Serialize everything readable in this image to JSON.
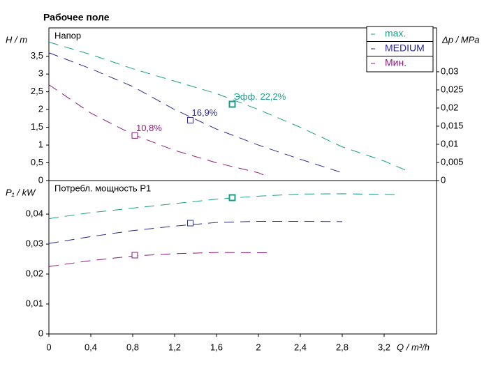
{
  "title": "Рабочее поле",
  "chart_data": [
    {
      "type": "line",
      "panel_title": "Напор",
      "ylabel": "H / m",
      "y2label": "Δp / MPa",
      "ylim": [
        0,
        4.3
      ],
      "y2lim": [
        0,
        0.0421
      ],
      "yticks": [
        0,
        {
          "value": 0.5,
          "label": "0,5"
        },
        1,
        {
          "value": 1.5,
          "label": "1,5"
        },
        2,
        {
          "value": 2.5,
          "label": "2,5"
        },
        3,
        {
          "value": 3.5,
          "label": "3,5"
        }
      ],
      "y2ticks": [
        0,
        {
          "value": 0.005,
          "label": "0,005"
        },
        {
          "value": 0.01,
          "label": "0,01"
        },
        {
          "value": 0.015,
          "label": "0,015"
        },
        {
          "value": 0.02,
          "label": "0,02"
        },
        {
          "value": 0.025,
          "label": "0,025"
        },
        {
          "value": 0.03,
          "label": "0,03"
        }
      ],
      "legend": "top-right",
      "series": [
        {
          "name": "max.",
          "color": "#1a9e8a",
          "x": [
            0,
            0.4,
            0.8,
            1.2,
            1.6,
            2.0,
            2.4,
            2.8,
            3.2,
            3.4
          ],
          "values": [
            3.9,
            3.55,
            3.15,
            2.8,
            2.45,
            2.0,
            1.5,
            0.95,
            0.55,
            0.3
          ],
          "marker": {
            "x": 1.75,
            "value": 2.15,
            "label": "Эфф.  22,2%"
          }
        },
        {
          "name": "MEDIUM",
          "color": "#2b2b8c",
          "x": [
            0,
            0.4,
            0.8,
            1.2,
            1.6,
            2.0,
            2.4,
            2.8
          ],
          "values": [
            3.6,
            3.15,
            2.65,
            2.0,
            1.45,
            1.0,
            0.6,
            0.22
          ],
          "marker": {
            "x": 1.35,
            "value": 1.7,
            "label": "16,9%"
          }
        },
        {
          "name": "Мин.",
          "color": "#8b1a7f",
          "x": [
            0,
            0.4,
            0.8,
            1.2,
            1.6,
            2.0,
            2.08
          ],
          "values": [
            2.7,
            1.9,
            1.3,
            0.85,
            0.5,
            0.22,
            0.12
          ],
          "marker": {
            "x": 0.82,
            "value": 1.27,
            "label": "10,8%"
          }
        }
      ]
    },
    {
      "type": "line",
      "panel_title": "Потребл. мощность P1",
      "ylabel": "P₁ / kW",
      "xlabel": "Q / m³/h",
      "ylim": [
        0,
        0.0512
      ],
      "xlim": [
        0,
        3.7
      ],
      "yticks": [
        0,
        {
          "value": 0.01,
          "label": "0,01"
        },
        {
          "value": 0.02,
          "label": "0,02"
        },
        {
          "value": 0.03,
          "label": "0,03"
        },
        {
          "value": 0.04,
          "label": "0,04"
        }
      ],
      "xticks": [
        0,
        {
          "value": 0.4,
          "label": "0,4"
        },
        {
          "value": 0.8,
          "label": "0,8"
        },
        {
          "value": 1.2,
          "label": "1,2"
        },
        {
          "value": 1.6,
          "label": "1,6"
        },
        2,
        {
          "value": 2.4,
          "label": "2,4"
        },
        {
          "value": 2.8,
          "label": "2,8"
        },
        {
          "value": 3.2,
          "label": "3,2"
        }
      ],
      "series": [
        {
          "color": "#1a9e8a",
          "x": [
            0,
            0.4,
            0.8,
            1.2,
            1.6,
            2.0,
            2.4,
            2.8,
            3.35
          ],
          "values": [
            0.0385,
            0.0405,
            0.042,
            0.0435,
            0.045,
            0.046,
            0.0467,
            0.0468,
            0.0465
          ],
          "marker": {
            "x": 1.75,
            "value": 0.0455
          }
        },
        {
          "color": "#2b2b8c",
          "x": [
            0,
            0.4,
            0.8,
            1.2,
            1.6,
            2.0,
            2.4,
            2.8
          ],
          "values": [
            0.0302,
            0.0325,
            0.0345,
            0.036,
            0.0372,
            0.0376,
            0.0376,
            0.0375
          ],
          "marker": {
            "x": 1.35,
            "value": 0.037
          }
        },
        {
          "color": "#8b1a7f",
          "x": [
            0,
            0.4,
            0.8,
            1.2,
            1.6,
            2.08
          ],
          "values": [
            0.0225,
            0.0245,
            0.026,
            0.0268,
            0.0272,
            0.0271
          ],
          "marker": {
            "x": 0.82,
            "value": 0.0263
          }
        }
      ]
    }
  ]
}
